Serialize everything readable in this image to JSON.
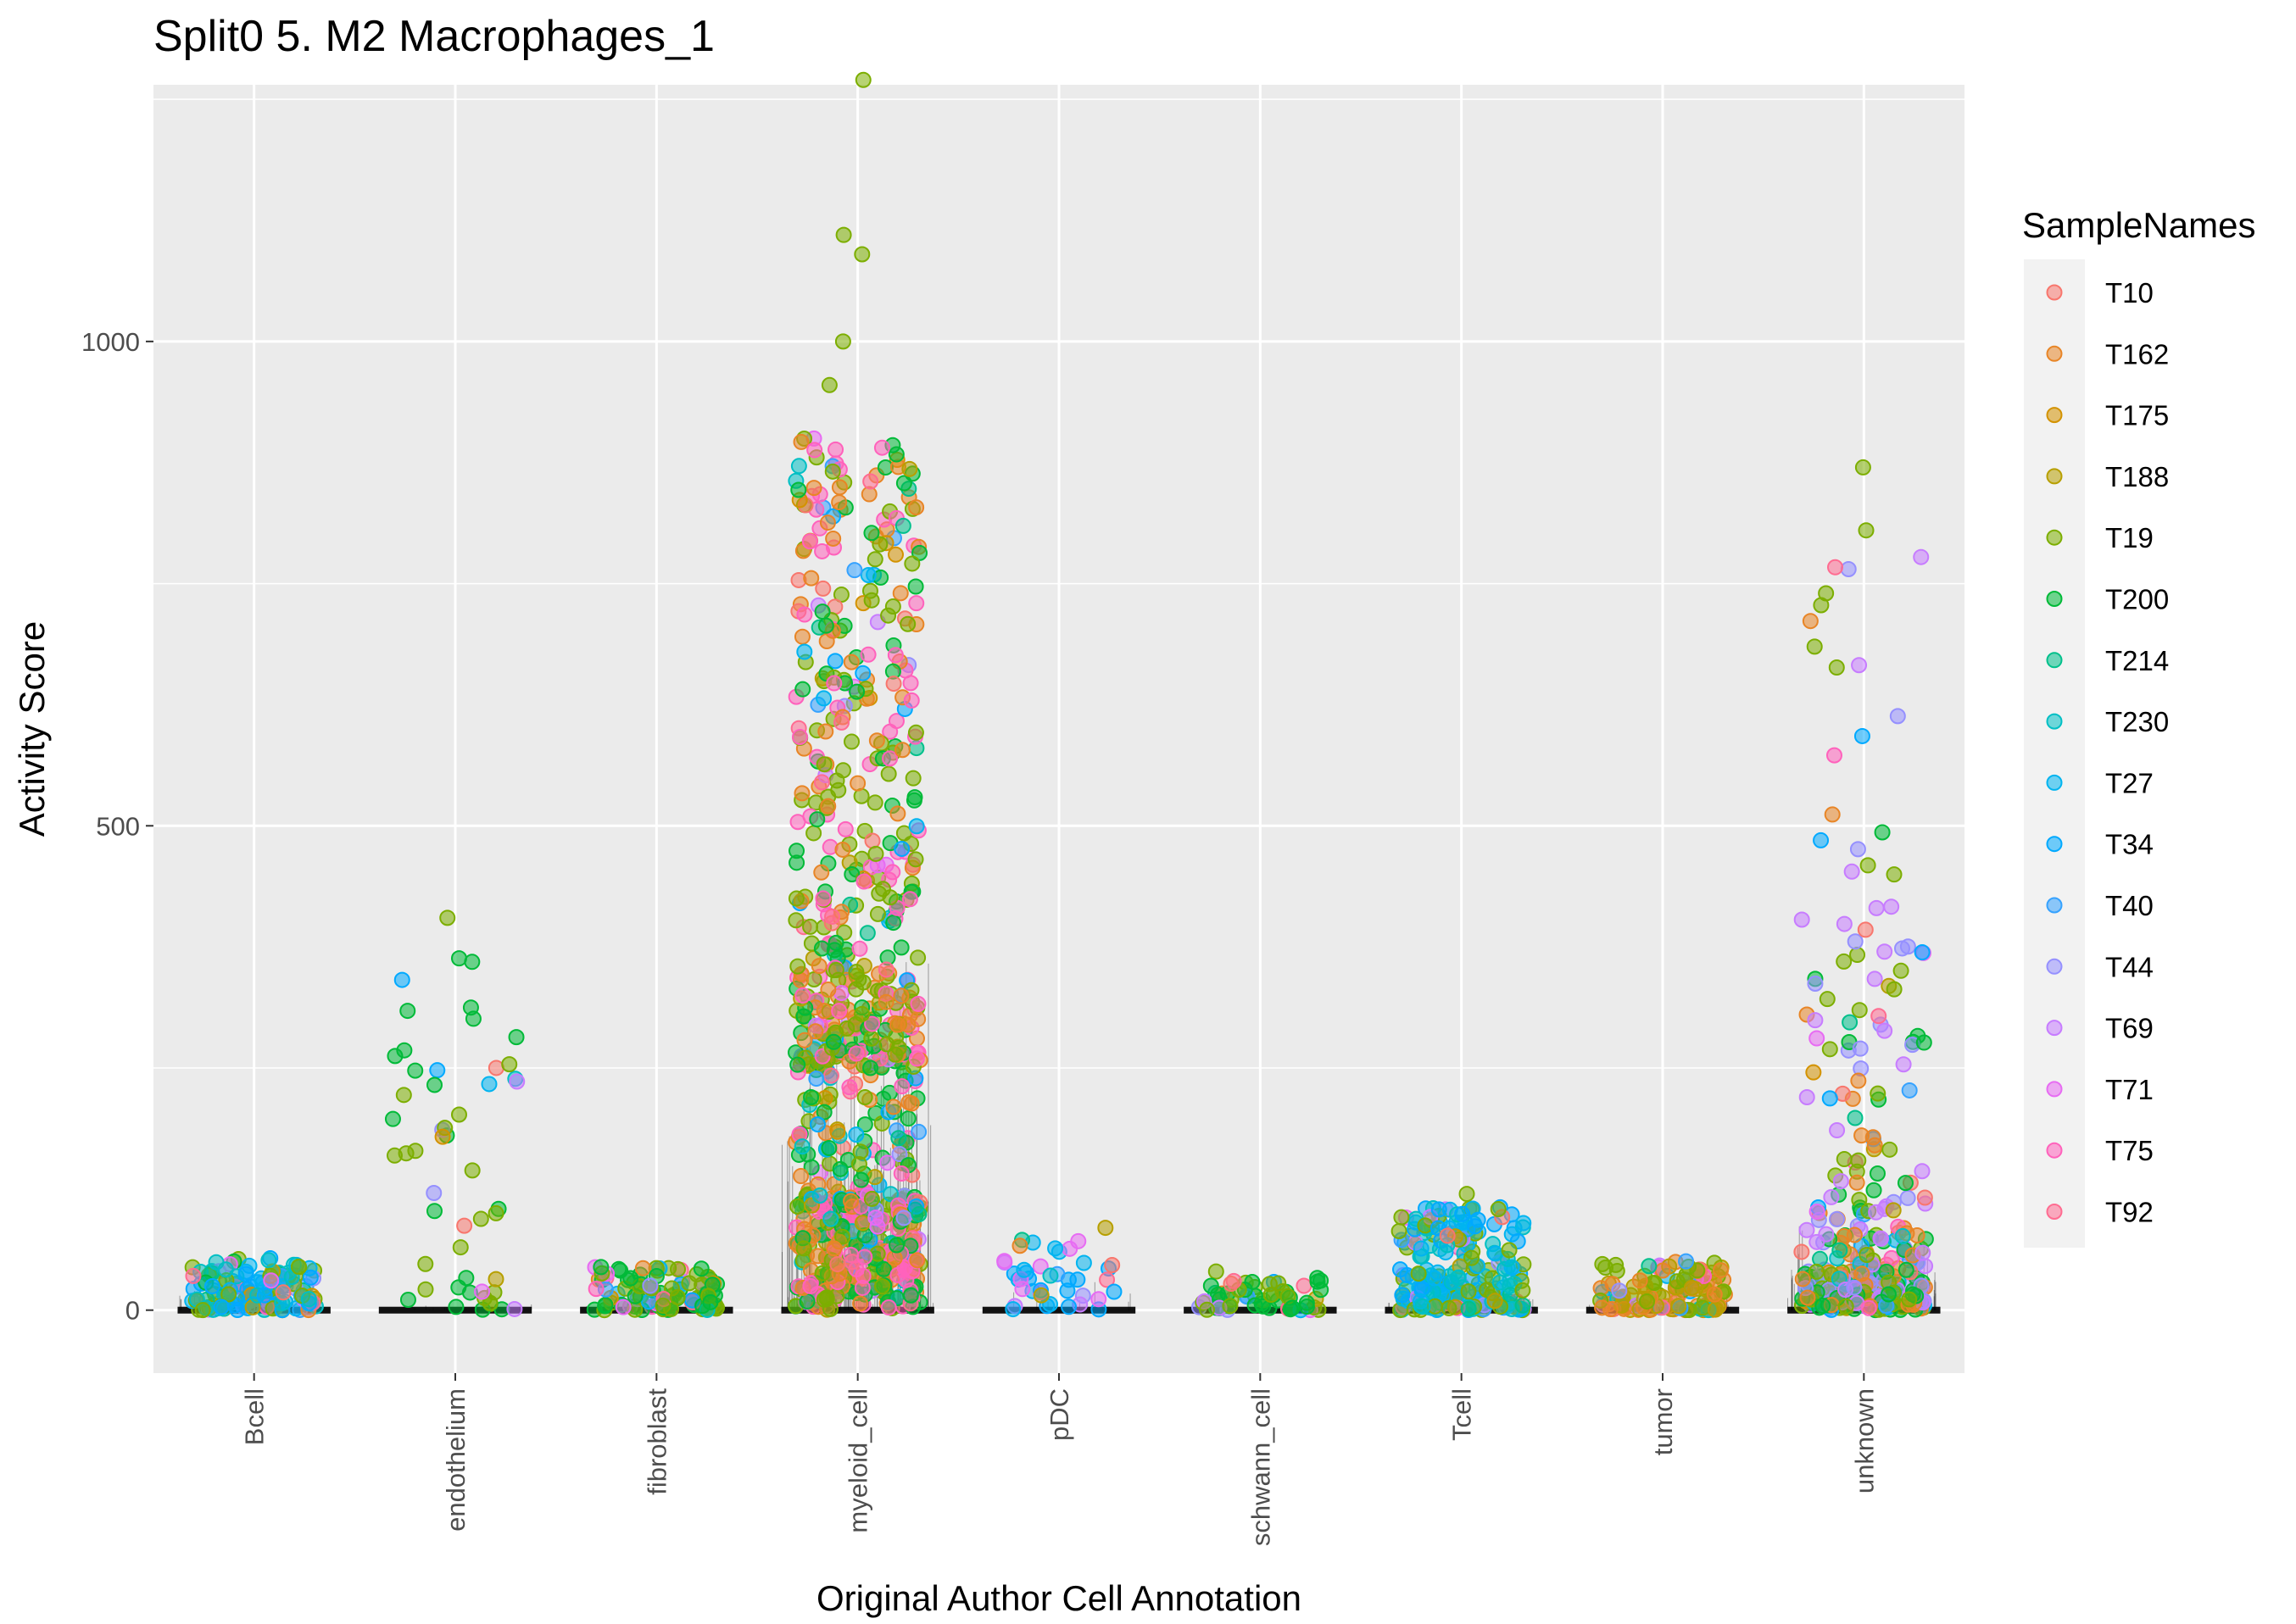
{
  "chart_data": {
    "type": "scatter",
    "subtype": "jittered violin/strip plot",
    "title": "Split0 5. M2 Macrophages_1",
    "xlabel": "Original Author Cell Annotation",
    "ylabel": "Activity Score",
    "categories": [
      "Bcell",
      "endothelium",
      "fibroblast",
      "myeloid_cell",
      "pDC",
      "schwann_cell",
      "Tcell",
      "tumor",
      "unknown"
    ],
    "ylim": [
      -65,
      1265
    ],
    "yticks": [
      0,
      500,
      1000
    ],
    "grid": true,
    "legend": {
      "title": "SampleNames",
      "position": "right",
      "entries": [
        {
          "name": "T10",
          "color": "#F8766D"
        },
        {
          "name": "T162",
          "color": "#E88526"
        },
        {
          "name": "T175",
          "color": "#D39200"
        },
        {
          "name": "T188",
          "color": "#B79F00"
        },
        {
          "name": "T19",
          "color": "#7CAE00"
        },
        {
          "name": "T200",
          "color": "#00BA38"
        },
        {
          "name": "T214",
          "color": "#00C08B"
        },
        {
          "name": "T230",
          "color": "#00BFC4"
        },
        {
          "name": "T27",
          "color": "#00B4F0"
        },
        {
          "name": "T34",
          "color": "#00A9FF"
        },
        {
          "name": "T40",
          "color": "#35A2FF"
        },
        {
          "name": "T44",
          "color": "#9590FF"
        },
        {
          "name": "T69",
          "color": "#C77CFF"
        },
        {
          "name": "T71",
          "color": "#E76BF3"
        },
        {
          "name": "T75",
          "color": "#FF62BC"
        },
        {
          "name": "T92",
          "color": "#FF6C91"
        }
      ]
    },
    "distributions": [
      {
        "category": "Bcell",
        "max": 60,
        "median_band": 30,
        "n_points": 140,
        "dominant_samples": [
          "T27",
          "T34",
          "T230",
          "T19"
        ]
      },
      {
        "category": "endothelium",
        "max": 405,
        "median_band": 10,
        "n_points": 50,
        "dominant_samples": [
          "T200",
          "T19"
        ]
      },
      {
        "category": "fibroblast",
        "max": 50,
        "median_band": 20,
        "n_points": 110,
        "dominant_samples": [
          "T19",
          "T200"
        ]
      },
      {
        "category": "myeloid_cell",
        "max": 1270,
        "median_band": 450,
        "n_points": 900,
        "dominant_samples": [
          "T19",
          "T200",
          "T162",
          "T75"
        ]
      },
      {
        "category": "pDC",
        "max": 85,
        "median_band": 40,
        "n_points": 40,
        "dominant_samples": [
          "T27",
          "T34",
          "T71"
        ]
      },
      {
        "category": "schwann_cell",
        "max": 45,
        "median_band": 10,
        "n_points": 60,
        "dominant_samples": [
          "T19",
          "T200"
        ]
      },
      {
        "category": "Tcell",
        "max": 120,
        "median_band": 30,
        "n_points": 220,
        "dominant_samples": [
          "T27",
          "T34",
          "T19",
          "T230"
        ]
      },
      {
        "category": "tumor",
        "max": 58,
        "median_band": 25,
        "n_points": 120,
        "dominant_samples": [
          "T19",
          "T188",
          "T162"
        ]
      },
      {
        "category": "unknown",
        "max": 870,
        "median_band": 120,
        "n_points": 320,
        "dominant_samples": [
          "T19",
          "T200",
          "T69",
          "T44",
          "T162"
        ]
      }
    ],
    "notable_points": [
      {
        "category": "myeloid_cell",
        "y": 1270,
        "sample": "T19"
      },
      {
        "category": "myeloid_cell",
        "y": 1110,
        "sample": "T19"
      },
      {
        "category": "myeloid_cell",
        "y": 1090,
        "sample": "T19"
      },
      {
        "category": "myeloid_cell",
        "y": 1000,
        "sample": "T19"
      },
      {
        "category": "myeloid_cell",
        "y": 955,
        "sample": "T19"
      },
      {
        "category": "endothelium",
        "y": 405,
        "sample": "T19"
      },
      {
        "category": "unknown",
        "y": 870,
        "sample": "T19"
      },
      {
        "category": "unknown",
        "y": 805,
        "sample": "T19"
      },
      {
        "category": "unknown",
        "y": 740,
        "sample": "T19"
      },
      {
        "category": "unknown",
        "y": 685,
        "sample": "T19"
      },
      {
        "category": "unknown",
        "y": 485,
        "sample": "T34"
      },
      {
        "category": "unknown",
        "y": 270,
        "sample": "T44"
      },
      {
        "category": "Tcell",
        "y": 120,
        "sample": "T19"
      },
      {
        "category": "endothelium",
        "y": 100,
        "sample": "T19"
      },
      {
        "category": "pDC",
        "y": 85,
        "sample": "T188"
      }
    ]
  }
}
